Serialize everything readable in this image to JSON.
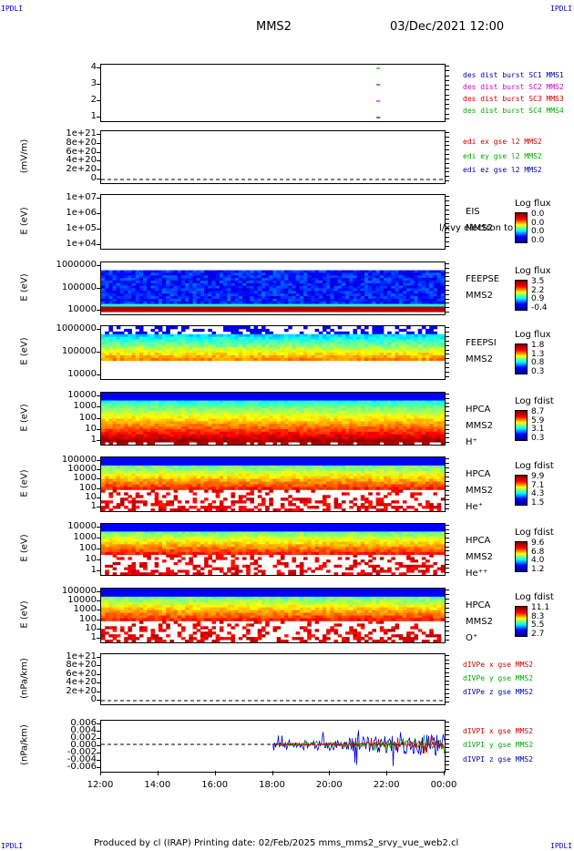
{
  "corners": {
    "tl": "IPDLI",
    "tr": "IPDLI",
    "bl": "IPDLI",
    "br": "IPDLI"
  },
  "header": {
    "spacecraft": "MMS2",
    "datetime": "03/Dec/2021 12:00"
  },
  "x_ticks": [
    "12:00",
    "14:00",
    "16:00",
    "18:00",
    "20:00",
    "22:00",
    "00:00"
  ],
  "footer": "Produced by cl (IRAP)   Printing date: 02/Feb/2025   mms_mms2_srvy_vue_web2.cl",
  "chart_data": [
    {
      "type": "line",
      "panel": "burst",
      "yticks": [
        "4",
        "3",
        "2",
        "1"
      ],
      "legend": [
        {
          "text": "des dist burst SC1 MMS1",
          "color": "#0000aa"
        },
        {
          "text": "des dist burst SC2 MMS2",
          "color": "#cc00cc"
        },
        {
          "text": "des dist burst SC3 MMS3",
          "color": "#cc0000"
        },
        {
          "text": "des dist burst SC4 MMS4",
          "color": "#00aa00"
        }
      ],
      "series": [
        {
          "name": "des dist burst SC4 MMS4",
          "y": 4,
          "x": [
            "21:37",
            "21:45"
          ],
          "color": "#00bb00"
        },
        {
          "name": "des dist burst SC3 MMS3",
          "y": 3,
          "x": [
            "21:37",
            "21:45"
          ],
          "color": "#cc0000"
        },
        {
          "name": "des dist burst SC2 MMS2",
          "y": 2,
          "x": [
            "21:37",
            "21:45"
          ],
          "color": "#cc00cc"
        },
        {
          "name": "des dist burst SC1 MMS1",
          "y": 1,
          "x": [
            "21:37",
            "21:45"
          ],
          "color": "#0000aa"
        }
      ]
    },
    {
      "type": "line",
      "panel": "edi",
      "ylabel": "(mV/m)",
      "yticks": [
        "1e+21",
        "8e+20",
        "6e+20",
        "4e+20",
        "2e+20",
        "0"
      ],
      "legend": [
        {
          "text": "edi ex gse l2 MMS2",
          "color": "#cc0000"
        },
        {
          "text": "edi ey gse l2 MMS2",
          "color": "#00aa00"
        },
        {
          "text": "edi ez gse l2 MMS2",
          "color": "#0000aa"
        }
      ],
      "zero_line": true
    },
    {
      "type": "heatmap",
      "panel": "eis",
      "ylabel": "E (eV)",
      "yticks": [
        "1e+07",
        "1e+06",
        "1e+05",
        "1e+04"
      ],
      "labels": [
        "EIS",
        "MMS2"
      ],
      "overlay": "l/xvy electron to",
      "colorbar": {
        "title": "Log flux",
        "values": [
          "0.0",
          "0.0",
          "0.0",
          "0.0"
        ]
      }
    },
    {
      "type": "heatmap",
      "panel": "feepse",
      "ylabel": "E (eV)",
      "yticks": [
        "1000000",
        "100000",
        "10000"
      ],
      "labels": [
        "FEEPSE",
        "MMS2"
      ],
      "colorbar": {
        "title": "Log flux",
        "values": [
          "3.5",
          "2.2",
          "0.9",
          "-0.4"
        ]
      }
    },
    {
      "type": "heatmap",
      "panel": "feepsi",
      "ylabel": "E (eV)",
      "yticks": [
        "1000000",
        "100000",
        "10000"
      ],
      "labels": [
        "FEEPSI",
        "MMS2"
      ],
      "colorbar": {
        "title": "Log flux",
        "values": [
          "1.8",
          "1.3",
          "0.8",
          "0.3"
        ]
      }
    },
    {
      "type": "heatmap",
      "panel": "hpca_h",
      "ylabel": "E (eV)",
      "yticks": [
        "10000",
        "1000",
        "100",
        "10",
        "1"
      ],
      "labels": [
        "HPCA",
        "MMS2",
        "H⁺"
      ],
      "colorbar": {
        "title": "Log fdist",
        "values": [
          "8.7",
          "5.9",
          "3.1",
          "0.3"
        ]
      }
    },
    {
      "type": "heatmap",
      "panel": "hpca_he",
      "ylabel": "E (eV)",
      "yticks": [
        "100000",
        "10000",
        "1000",
        "100",
        "10",
        "1"
      ],
      "labels": [
        "HPCA",
        "MMS2",
        "He⁺"
      ],
      "colorbar": {
        "title": "Log fdist",
        "values": [
          "9.9",
          "7.1",
          "4.3",
          "1.5"
        ]
      }
    },
    {
      "type": "heatmap",
      "panel": "hpca_hepp",
      "ylabel": "E (eV)",
      "yticks": [
        "10000",
        "1000",
        "100",
        "10",
        "1"
      ],
      "labels": [
        "HPCA",
        "MMS2",
        "He⁺⁺"
      ],
      "colorbar": {
        "title": "Log fdist",
        "values": [
          "9.6",
          "6.8",
          "4.0",
          "1.2"
        ]
      }
    },
    {
      "type": "heatmap",
      "panel": "hpca_o",
      "ylabel": "E (eV)",
      "yticks": [
        "100000",
        "10000",
        "1000",
        "100",
        "10",
        "1"
      ],
      "labels": [
        "HPCA",
        "MMS2",
        "O⁺"
      ],
      "colorbar": {
        "title": "Log fdist",
        "values": [
          "11.1",
          "8.3",
          "5.5",
          "2.7"
        ]
      }
    },
    {
      "type": "line",
      "panel": "divpe",
      "ylabel": "(nPa/km)",
      "yticks": [
        "1e+21",
        "8e+20",
        "6e+20",
        "4e+20",
        "2e+20",
        "0"
      ],
      "legend": [
        {
          "text": "dIVPe x gse MMS2",
          "color": "#cc0000"
        },
        {
          "text": "dIVPe y gse MMS2",
          "color": "#00aa00"
        },
        {
          "text": "dIVPe z gse MMS2",
          "color": "#0000aa"
        }
      ],
      "zero_line": true
    },
    {
      "type": "line",
      "panel": "divpi",
      "ylabel": "(nPa/km)",
      "yticks": [
        "0.006",
        "0.004",
        "0.002",
        "0.000",
        "-0.002",
        "-0.004",
        "-0.006"
      ],
      "legend": [
        {
          "text": "dIVPI x gse MMS2",
          "color": "#cc0000"
        },
        {
          "text": "dIVPI y gse MMS2",
          "color": "#00aa00"
        },
        {
          "text": "dIVPI z gse MMS2",
          "color": "#0000aa"
        }
      ],
      "data_start": "18:00",
      "ylim": [
        -0.007,
        0.007
      ]
    }
  ]
}
